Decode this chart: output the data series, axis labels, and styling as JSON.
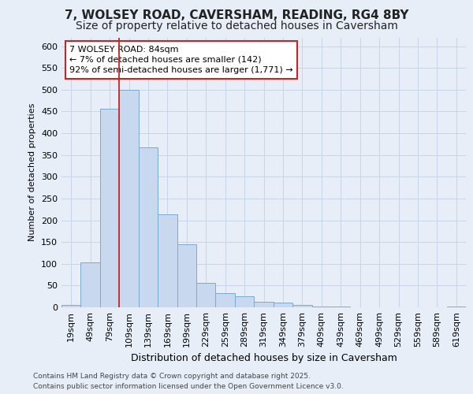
{
  "title_line1": "7, WOLSEY ROAD, CAVERSHAM, READING, RG4 8BY",
  "title_line2": "Size of property relative to detached houses in Caversham",
  "xlabel": "Distribution of detached houses by size in Caversham",
  "ylabel": "Number of detached properties",
  "annotation_title": "7 WOLSEY ROAD: 84sqm",
  "annotation_line2": "← 7% of detached houses are smaller (142)",
  "annotation_line3": "92% of semi-detached houses are larger (1,771) →",
  "footer_line1": "Contains HM Land Registry data © Crown copyright and database right 2025.",
  "footer_line2": "Contains public sector information licensed under the Open Government Licence v3.0.",
  "bar_categories": [
    "19sqm",
    "49sqm",
    "79sqm",
    "109sqm",
    "139sqm",
    "169sqm",
    "199sqm",
    "229sqm",
    "259sqm",
    "289sqm",
    "319sqm",
    "349sqm",
    "379sqm",
    "409sqm",
    "439sqm",
    "469sqm",
    "499sqm",
    "529sqm",
    "559sqm",
    "589sqm",
    "619sqm"
  ],
  "bar_values": [
    5,
    103,
    457,
    500,
    368,
    213,
    144,
    57,
    33,
    25,
    12,
    10,
    5,
    2,
    1,
    0,
    0,
    0,
    0,
    0,
    2
  ],
  "bar_color": "#c8d8ee",
  "bar_edge_color": "#7aaad0",
  "vline_x": 2.5,
  "vline_color": "#cc2222",
  "annotation_box_facecolor": "#ffffff",
  "annotation_box_edgecolor": "#cc2222",
  "grid_color": "#c8d4e8",
  "background_color": "#e8eef8",
  "plot_bg_color": "#e8eef8",
  "ylim_max": 620,
  "yticks": [
    0,
    50,
    100,
    150,
    200,
    250,
    300,
    350,
    400,
    450,
    500,
    550,
    600
  ],
  "title1_fontsize": 11,
  "title2_fontsize": 10,
  "ylabel_fontsize": 8,
  "xlabel_fontsize": 9,
  "tick_fontsize": 8,
  "annot_fontsize": 8,
  "footer_fontsize": 6.5
}
